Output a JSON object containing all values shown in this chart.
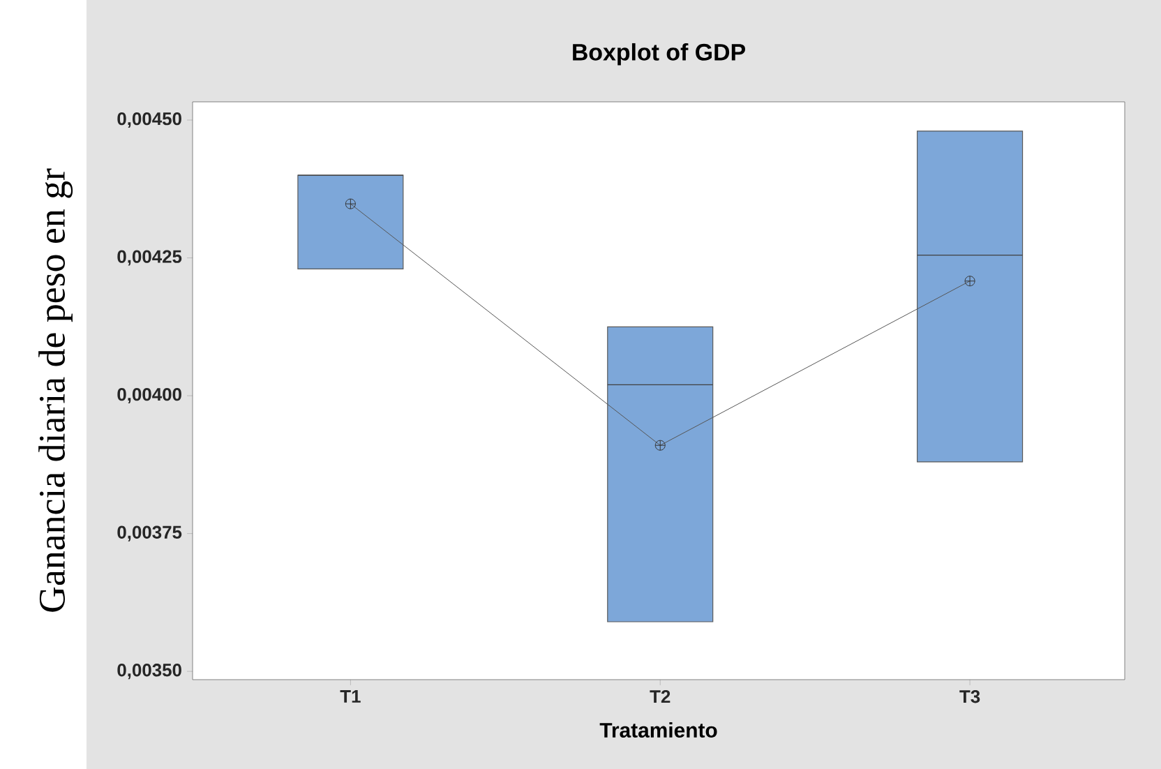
{
  "chart_data": {
    "type": "box",
    "title": "Boxplot of GDP",
    "xlabel": "Tratamiento",
    "ylabel": "Ganancia diaria de peso en gr",
    "categories": [
      "T1",
      "T2",
      "T3"
    ],
    "series": [
      {
        "color": "#7da7d9",
        "boxes": [
          {
            "low": 0.00423,
            "q1": 0.00423,
            "median": 0.0044,
            "q3": 0.0044,
            "high": 0.0044
          },
          {
            "low": 0.00359,
            "q1": 0.00359,
            "median": 0.00402,
            "q3": 0.004125,
            "high": 0.004125
          },
          {
            "low": 0.00388,
            "q1": 0.00388,
            "median": 0.004255,
            "q3": 0.00448,
            "high": 0.00448
          }
        ]
      },
      {
        "type": "line",
        "color": "#555555",
        "values": [
          0.004348,
          0.00391,
          0.004208
        ]
      }
    ],
    "marker": "cross",
    "ylim": [
      0.003485,
      0.004533
    ],
    "yticks": [
      {
        "value": 0.0035,
        "label": "0,00350"
      },
      {
        "value": 0.00375,
        "label": "0,00375"
      },
      {
        "value": 0.004,
        "label": "0,00400"
      },
      {
        "value": 0.00425,
        "label": "0,00425"
      },
      {
        "value": 0.0045,
        "label": "0,00450"
      }
    ]
  }
}
